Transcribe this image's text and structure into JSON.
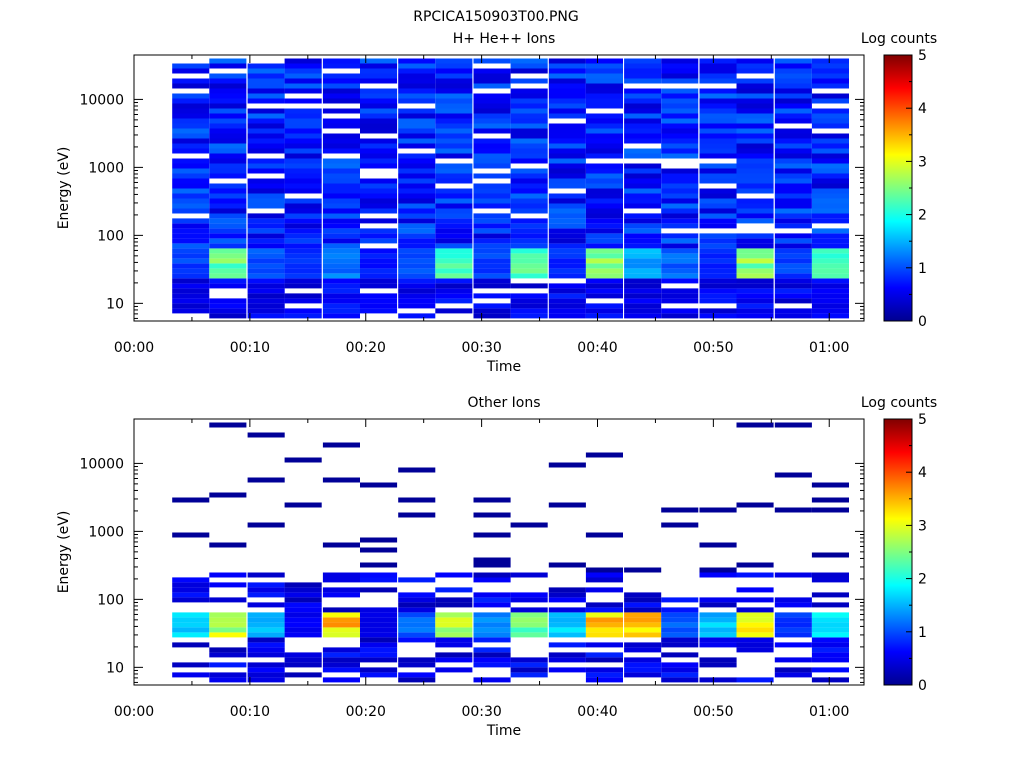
{
  "figure_title": "RPCICA150903T00.PNG",
  "chart_data": [
    {
      "type": "heatmap",
      "title": "H+ He++ Ions",
      "xlabel": "Time",
      "ylabel": "Energy (eV)",
      "xticks": [
        "00:00",
        "00:10",
        "00:20",
        "00:30",
        "00:40",
        "00:50",
        "01:00"
      ],
      "xlim_minutes": [
        0,
        63
      ],
      "yticks": [
        "10",
        "100",
        "1000",
        "10000"
      ],
      "ylim": [
        5.5,
        45000
      ],
      "yscale": "log",
      "colorbar": {
        "label": "Log counts",
        "ticks": [
          "0",
          "1",
          "2",
          "3",
          "4",
          "5"
        ],
        "range": [
          0,
          5
        ]
      },
      "time_bins_minutes": [
        3.3,
        6.5,
        9.8,
        13,
        16.3,
        19.5,
        22.8,
        26,
        29.3,
        32.5,
        35.8,
        39,
        42.3,
        45.5,
        48.8,
        52,
        55.3,
        58.5
      ],
      "bin_width_minutes": 3.2,
      "energy_range_eV": [
        6,
        40000
      ],
      "density": "dense",
      "low_energy_peak": {
        "energy_min_eV": 25,
        "energy_max_eV": 60,
        "peak_log_counts": [
          1.0,
          2.6,
          1.1,
          0.9,
          1.3,
          0.8,
          1.1,
          2.4,
          1.0,
          2.5,
          0.9,
          2.8,
          1.6,
          1.2,
          0.9,
          2.7,
          1.0,
          2.2
        ]
      },
      "background_log_counts": 0.6
    },
    {
      "type": "heatmap",
      "title": "Other Ions",
      "xlabel": "Time",
      "ylabel": "Energy (eV)",
      "xticks": [
        "00:00",
        "00:10",
        "00:20",
        "00:30",
        "00:40",
        "00:50",
        "01:00"
      ],
      "xlim_minutes": [
        0,
        63
      ],
      "yticks": [
        "10",
        "100",
        "1000",
        "10000"
      ],
      "ylim": [
        5.5,
        45000
      ],
      "yscale": "log",
      "colorbar": {
        "label": "Log counts",
        "ticks": [
          "0",
          "1",
          "2",
          "3",
          "4",
          "5"
        ],
        "range": [
          0,
          5
        ]
      },
      "time_bins_minutes": [
        3.3,
        6.5,
        9.8,
        13,
        16.3,
        19.5,
        22.8,
        26,
        29.3,
        32.5,
        35.8,
        39,
        42.3,
        45.5,
        48.8,
        52,
        55.3,
        58.5
      ],
      "bin_width_minutes": 3.2,
      "energy_range_eV": [
        6,
        40000
      ],
      "density": "sparse",
      "low_energy_peak": {
        "energy_min_eV": 28,
        "energy_max_eV": 60,
        "peak_log_counts": [
          1.8,
          3.0,
          1.6,
          0.6,
          3.6,
          0.5,
          1.2,
          3.1,
          1.4,
          2.6,
          1.8,
          3.5,
          3.7,
          1.2,
          1.7,
          3.2,
          1.0,
          2.0
        ]
      },
      "background_log_counts": 0.1
    }
  ]
}
